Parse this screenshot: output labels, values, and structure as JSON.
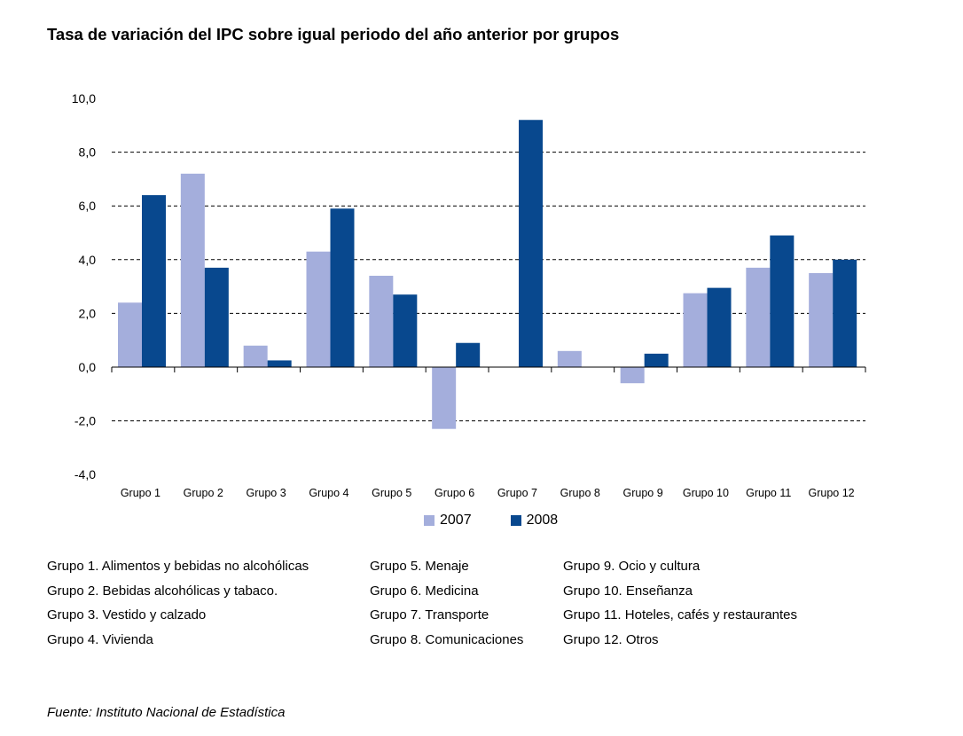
{
  "title": "Tasa de variación del IPC sobre igual periodo del año anterior por grupos",
  "colors": {
    "series_2007": "#a4aedc",
    "series_2008": "#08488e"
  },
  "legend": [
    {
      "label": "2007",
      "color": "#a4aedc"
    },
    {
      "label": "2008",
      "color": "#08488e"
    }
  ],
  "chart_data": {
    "type": "bar",
    "categories": [
      "Grupo 1",
      "Grupo 2",
      "Grupo 3",
      "Grupo 4",
      "Grupo 5",
      "Grupo 6",
      "Grupo 7",
      "Grupo 8",
      "Grupo 9",
      "Grupo 10",
      "Grupo 11",
      "Grupo 12"
    ],
    "series": [
      {
        "name": "2007",
        "values": [
          2.4,
          7.2,
          0.8,
          4.3,
          3.4,
          -2.3,
          0.0,
          0.6,
          -0.6,
          2.75,
          3.7,
          3.5
        ]
      },
      {
        "name": "2008",
        "values": [
          6.4,
          3.7,
          0.25,
          5.9,
          2.7,
          0.9,
          9.2,
          0.0,
          0.5,
          2.95,
          4.9,
          4.0
        ]
      }
    ],
    "ylim": [
      -4,
      10
    ],
    "yticks": [
      10,
      8,
      6,
      4,
      2,
      0,
      -2,
      -4
    ],
    "ytick_labels": [
      "10,0",
      "8,0",
      "6,0",
      "4,0",
      "2,0",
      "0,0",
      "-2,0",
      "-4,0"
    ],
    "gridlines": "dashed",
    "legend_position": "bottom"
  },
  "notes": [
    [
      "Grupo 1. Alimentos y bebidas no alcohólicas",
      "Grupo 2. Bebidas alcohólicas y  tabaco.",
      "Grupo 3. Vestido y calzado",
      "Grupo 4. Vivienda"
    ],
    [
      "Grupo 5. Menaje",
      "Grupo 6. Medicina",
      "Grupo 7. Transporte",
      "Grupo 8. Comunicaciones"
    ],
    [
      "Grupo 9. Ocio y cultura",
      "Grupo 10. Enseñanza",
      "Grupo 11. Hoteles, cafés y restaurantes",
      "Grupo 12. Otros"
    ]
  ],
  "source": "Fuente: Instituto Nacional de Estadística"
}
